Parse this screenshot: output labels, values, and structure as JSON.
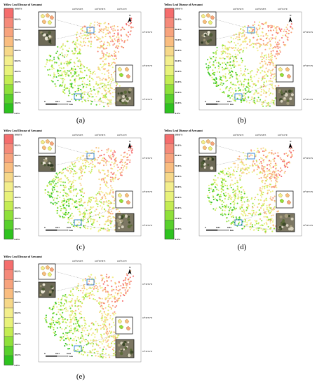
{
  "figure": {
    "legend_title": "Yellow Leaf Disease of Arecanut",
    "legend_ticks_full": [
      "100.0%",
      "90.0%",
      "80.0%",
      "70.0%",
      "60.0%",
      "50.0%",
      "40.0%",
      "30.0%",
      "20.0%",
      "10.0%",
      "0.0%"
    ],
    "legend_colors": [
      "#f56d6d",
      "#f58a7a",
      "#f7a37d",
      "#f9bd80",
      "#f6d889",
      "#f3ee8c",
      "#e8f27a",
      "#c4ec52",
      "#8fe03a",
      "#58d02c",
      "#2ec31f"
    ],
    "scale_labels": [
      "0",
      "0.01",
      "0.02"
    ],
    "scale_unit": "km",
    "north_label": "N",
    "top_coords": [
      "109°30'56\"E",
      "109°30'58\"E",
      "109°31'0\"E"
    ],
    "right_coords": [
      "18°30'56\"N",
      "18°30'55\"N",
      "18°30'54\"N"
    ],
    "point_colors": [
      "#2ec31f",
      "#58d02c",
      "#8fe03a",
      "#c4ec52",
      "#e8f27a",
      "#f3ee8c",
      "#f6d889",
      "#f9bd80",
      "#f7a37d",
      "#f58a7a",
      "#f56d6d"
    ]
  },
  "panels": [
    {
      "caption": "(a)",
      "top_tick": "100.0%"
    },
    {
      "caption": "(b)",
      "top_tick": "100.0%"
    },
    {
      "caption": "(c)",
      "top_tick": "100.0%"
    },
    {
      "caption": "(d)",
      "top_tick": "100.0%"
    },
    {
      "caption": "(e)",
      "top_tick": ""
    }
  ]
}
